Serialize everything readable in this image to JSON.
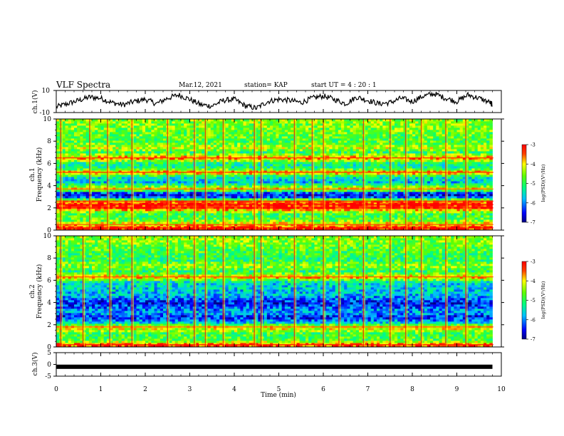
{
  "header": {
    "title": "VLF Spectra",
    "date": "Mar.12, 2021",
    "station": "station= KAP",
    "start": "start  UT =   4 : 20 : 1"
  },
  "chart_data": [
    {
      "type": "line",
      "panel": "ch1-waveform",
      "ylabel": "ch.1(V)",
      "ylim": [
        -10,
        10
      ],
      "yticks": [
        "10",
        "-10"
      ],
      "xlim": [
        0,
        10
      ],
      "x": [
        0.0,
        0.25,
        0.5,
        0.75,
        1.0,
        1.25,
        1.5,
        1.75,
        2.0,
        2.25,
        2.5,
        2.75,
        3.0,
        3.25,
        3.5,
        3.75,
        4.0,
        4.25,
        4.5,
        4.75,
        5.0,
        5.25,
        5.5,
        5.75,
        6.0,
        6.25,
        6.5,
        6.75,
        7.0,
        7.25,
        7.5,
        7.75,
        8.0,
        8.25,
        8.5,
        8.75,
        9.0,
        9.25,
        9.5,
        9.75,
        9.8
      ],
      "y": [
        -5,
        -2,
        1,
        4,
        3,
        -1,
        -3,
        0,
        2,
        -2,
        3,
        6,
        2,
        -3,
        -4,
        1,
        2,
        -4,
        -6,
        0,
        2,
        1,
        -1,
        3,
        5,
        2,
        -2,
        4,
        1,
        -2,
        -1,
        3,
        0,
        5,
        7,
        3,
        0,
        6,
        3,
        -1,
        -3
      ],
      "color": "#000000"
    },
    {
      "type": "heatmap",
      "panel": "ch1-spectrogram",
      "ylabel": "ch.1\nFrequency (kHz)",
      "ylim": [
        0,
        10
      ],
      "yticks": [
        "0",
        "2",
        "4",
        "6",
        "8",
        "10"
      ],
      "xlim": [
        0,
        10
      ],
      "colorbar": {
        "label": "log(PSD)(V²/Hz)",
        "range": [
          -7,
          -3
        ],
        "ticks": [
          "-3",
          "-4",
          "-5",
          "-6",
          "-7"
        ]
      },
      "bands": [
        {
          "f": 0.2,
          "level": -3.2
        },
        {
          "f": 0.5,
          "level": -3.8
        },
        {
          "f": 1.0,
          "level": -4.8
        },
        {
          "f": 1.5,
          "level": -4.9
        },
        {
          "f": 2.0,
          "level": -3.3
        },
        {
          "f": 2.3,
          "level": -3.2
        },
        {
          "f": 2.6,
          "level": -3.6
        },
        {
          "f": 3.0,
          "level": -6.3
        },
        {
          "f": 3.3,
          "level": -6.6
        },
        {
          "f": 3.7,
          "level": -3.9
        },
        {
          "f": 4.3,
          "level": -5.7
        },
        {
          "f": 4.8,
          "level": -5.4
        },
        {
          "f": 5.2,
          "level": -3.6
        },
        {
          "f": 5.6,
          "level": -5.2
        },
        {
          "f": 6.0,
          "level": -5.3
        },
        {
          "f": 6.5,
          "level": -3.6
        },
        {
          "f": 7.0,
          "level": -5.0
        },
        {
          "f": 7.4,
          "level": -4.3
        },
        {
          "f": 8.0,
          "level": -4.8
        },
        {
          "f": 8.6,
          "level": -4.7
        },
        {
          "f": 9.2,
          "level": -4.6
        },
        {
          "f": 9.7,
          "level": -4.5
        }
      ],
      "bursts_min": [
        0.1,
        0.75,
        1.15,
        1.7,
        2.5,
        3.1,
        3.35,
        3.75,
        4.45,
        4.6,
        5.35,
        5.75,
        6.0,
        6.9,
        7.5,
        7.85,
        8.2,
        8.75,
        9.2
      ]
    },
    {
      "type": "heatmap",
      "panel": "ch2-spectrogram",
      "ylabel": "ch.2\nFrequency (kHz)",
      "ylim": [
        0,
        10
      ],
      "yticks": [
        "0",
        "2",
        "4",
        "6",
        "8",
        "10"
      ],
      "xlim": [
        0,
        10
      ],
      "colorbar": {
        "label": "log(PSD)(V²/Hz)",
        "range": [
          -7,
          -3
        ],
        "ticks": [
          "-3",
          "-4",
          "-5",
          "-6",
          "-7"
        ]
      },
      "bands": [
        {
          "f": 0.2,
          "level": -3.4
        },
        {
          "f": 0.6,
          "level": -4.8
        },
        {
          "f": 1.2,
          "level": -4.9
        },
        {
          "f": 1.8,
          "level": -3.9
        },
        {
          "f": 2.2,
          "level": -5.6
        },
        {
          "f": 2.7,
          "level": -6.5
        },
        {
          "f": 3.1,
          "level": -5.8
        },
        {
          "f": 3.6,
          "level": -6.2
        },
        {
          "f": 4.0,
          "level": -6.5
        },
        {
          "f": 4.6,
          "level": -5.8
        },
        {
          "f": 5.2,
          "level": -5.6
        },
        {
          "f": 5.8,
          "level": -5.6
        },
        {
          "f": 6.3,
          "level": -3.8
        },
        {
          "f": 6.8,
          "level": -5.1
        },
        {
          "f": 7.3,
          "level": -4.4
        },
        {
          "f": 7.8,
          "level": -5.0
        },
        {
          "f": 8.4,
          "level": -4.9
        },
        {
          "f": 9.0,
          "level": -4.7
        },
        {
          "f": 9.6,
          "level": -4.5
        }
      ],
      "bursts_min": [
        0.1,
        0.6,
        1.2,
        1.7,
        2.5,
        3.1,
        3.35,
        3.75,
        4.45,
        4.6,
        5.35,
        6.0,
        6.35,
        6.9,
        7.5,
        7.85,
        8.2,
        8.75,
        9.2
      ]
    },
    {
      "type": "line",
      "panel": "ch3-waveform",
      "ylabel": "ch.3(V)",
      "ylim": [
        -5,
        5
      ],
      "yticks": [
        "5",
        "0",
        "-5"
      ],
      "xlim": [
        0,
        10
      ],
      "x": [
        0,
        9.8
      ],
      "y": [
        -1,
        -1
      ],
      "color": "#000000"
    }
  ],
  "xaxis": {
    "label": "Time  (min)",
    "ticks": [
      "0",
      "1",
      "2",
      "3",
      "4",
      "5",
      "6",
      "7",
      "8",
      "9",
      "10"
    ]
  }
}
